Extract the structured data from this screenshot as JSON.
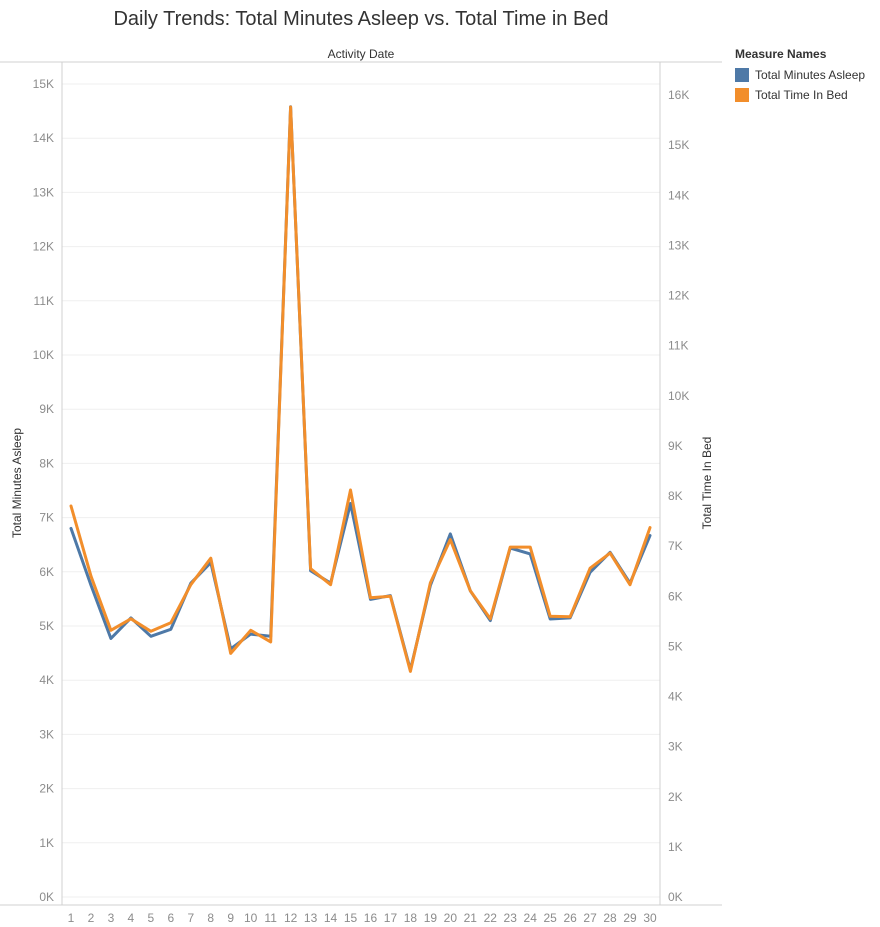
{
  "chart_data": {
    "type": "line",
    "title": "Daily Trends: Total Minutes Asleep vs. Total Time in Bed",
    "xlabel": "Activity Date",
    "ylabel_left": "Total Minutes Asleep",
    "ylabel_right": "Total Time In Bed",
    "x": [
      1,
      2,
      3,
      4,
      5,
      6,
      7,
      8,
      9,
      10,
      11,
      12,
      13,
      14,
      15,
      16,
      17,
      18,
      19,
      20,
      21,
      22,
      23,
      24,
      25,
      26,
      27,
      28,
      29,
      30
    ],
    "left_axis": {
      "min": 0,
      "max": 15000,
      "ticks": [
        0,
        1000,
        2000,
        3000,
        4000,
        5000,
        6000,
        7000,
        8000,
        9000,
        10000,
        11000,
        12000,
        13000,
        14000,
        15000
      ],
      "tick_labels": [
        "0K",
        "1K",
        "2K",
        "3K",
        "4K",
        "5K",
        "6K",
        "7K",
        "8K",
        "9K",
        "10K",
        "11K",
        "12K",
        "13K",
        "14K",
        "15K"
      ]
    },
    "right_axis": {
      "min": 0,
      "max": 16000,
      "ticks": [
        0,
        1000,
        2000,
        3000,
        4000,
        5000,
        6000,
        7000,
        8000,
        9000,
        10000,
        11000,
        12000,
        13000,
        14000,
        15000,
        16000
      ],
      "tick_labels": [
        "0K",
        "1K",
        "2K",
        "3K",
        "4K",
        "5K",
        "6K",
        "7K",
        "8K",
        "9K",
        "10K",
        "11K",
        "12K",
        "13K",
        "14K",
        "15K",
        "16K"
      ]
    },
    "series": [
      {
        "name": "Total Minutes Asleep",
        "axis": "left",
        "color": "#4e79a7",
        "values": [
          6800,
          5750,
          4770,
          5150,
          4810,
          4940,
          5790,
          6170,
          4580,
          4850,
          4810,
          14580,
          6020,
          5790,
          7260,
          5490,
          5560,
          4190,
          5750,
          6700,
          5650,
          5100,
          6440,
          6330,
          5130,
          5150,
          5990,
          6360,
          5790,
          6670
        ]
      },
      {
        "name": "Total Time In Bed",
        "axis": "right",
        "color": "#f28e2b",
        "values": [
          7800,
          6400,
          5320,
          5550,
          5300,
          5470,
          6230,
          6760,
          4860,
          5320,
          5090,
          15760,
          6550,
          6230,
          8120,
          5970,
          6000,
          4500,
          6270,
          7130,
          6110,
          5550,
          6980,
          6980,
          5600,
          5590,
          6560,
          6860,
          6230,
          7370
        ]
      }
    ],
    "legend_title": "Measure Names",
    "legend_placement": "right",
    "grid": true
  }
}
